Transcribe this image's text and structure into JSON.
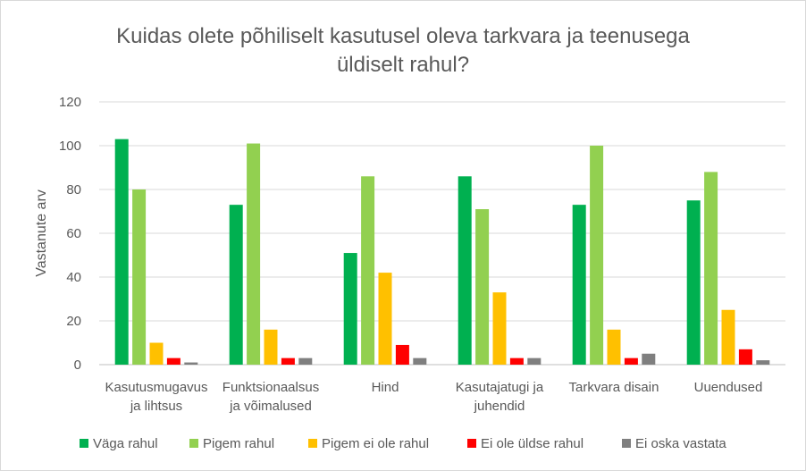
{
  "chart_data": {
    "type": "bar",
    "title_lines": [
      "Kuidas olete põhiliselt kasutusel oleva tarkvara ja teenusega",
      "üldiselt rahul?"
    ],
    "ylabel": "Vastanute arv",
    "xlabel": "",
    "ylim": [
      0,
      120
    ],
    "yticks": [
      0,
      20,
      40,
      60,
      80,
      100,
      120
    ],
    "grid": true,
    "legend_position": "bottom",
    "categories": [
      [
        "Kasutusmugavus",
        "ja lihtsus"
      ],
      [
        "Funktsionaalsus",
        "ja võimalused"
      ],
      [
        "Hind"
      ],
      [
        "Kasutajatugi ja",
        "juhendid"
      ],
      [
        "Tarkvara disain"
      ],
      [
        "Uuendused"
      ]
    ],
    "series": [
      {
        "name": "Väga rahul",
        "color": "#00b050",
        "values": [
          103,
          73,
          51,
          86,
          73,
          75
        ]
      },
      {
        "name": "Pigem rahul",
        "color": "#92d050",
        "values": [
          80,
          101,
          86,
          71,
          100,
          88
        ]
      },
      {
        "name": "Pigem ei ole rahul",
        "color": "#ffc000",
        "values": [
          10,
          16,
          42,
          33,
          16,
          25
        ]
      },
      {
        "name": "Ei ole üldse rahul",
        "color": "#ff0000",
        "values": [
          3,
          3,
          9,
          3,
          3,
          7
        ]
      },
      {
        "name": "Ei oska vastata",
        "color": "#7f7f7f",
        "values": [
          1,
          3,
          3,
          3,
          5,
          2
        ]
      }
    ]
  }
}
